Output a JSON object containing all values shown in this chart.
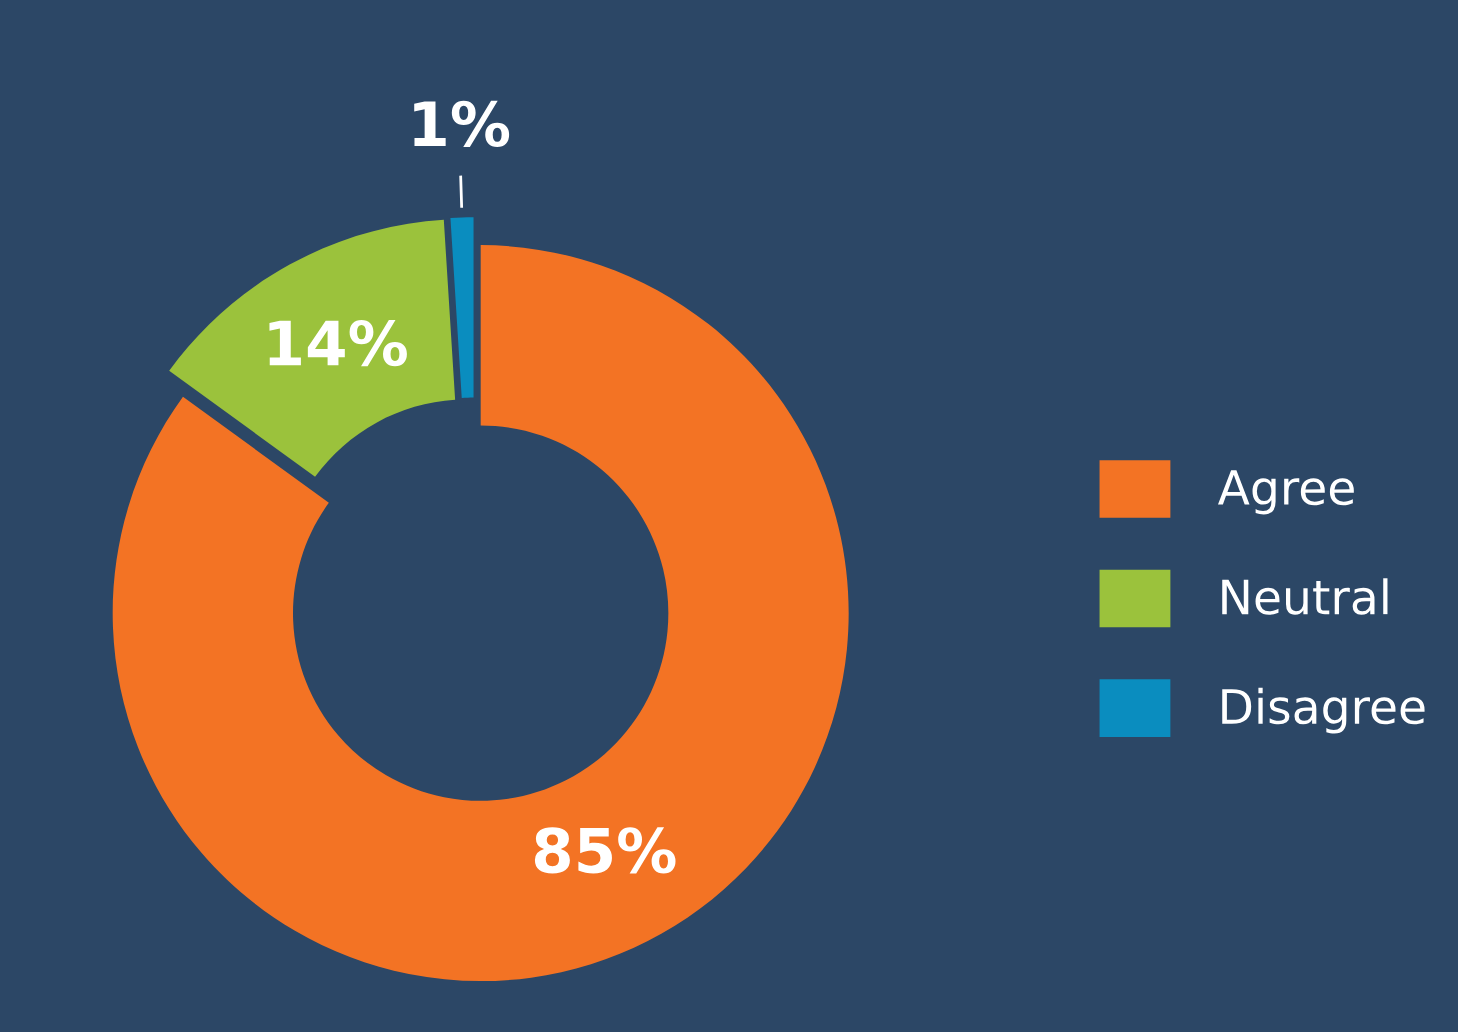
{
  "chart_data": {
    "type": "donut",
    "categories": [
      "Agree",
      "Neutral",
      "Disagree"
    ],
    "values": [
      85,
      14,
      1
    ],
    "colors": [
      "#f37324",
      "#9bc23c",
      "#0a8dbf"
    ],
    "value_labels": [
      "85%",
      "14%",
      "1%"
    ],
    "legend": "right"
  }
}
